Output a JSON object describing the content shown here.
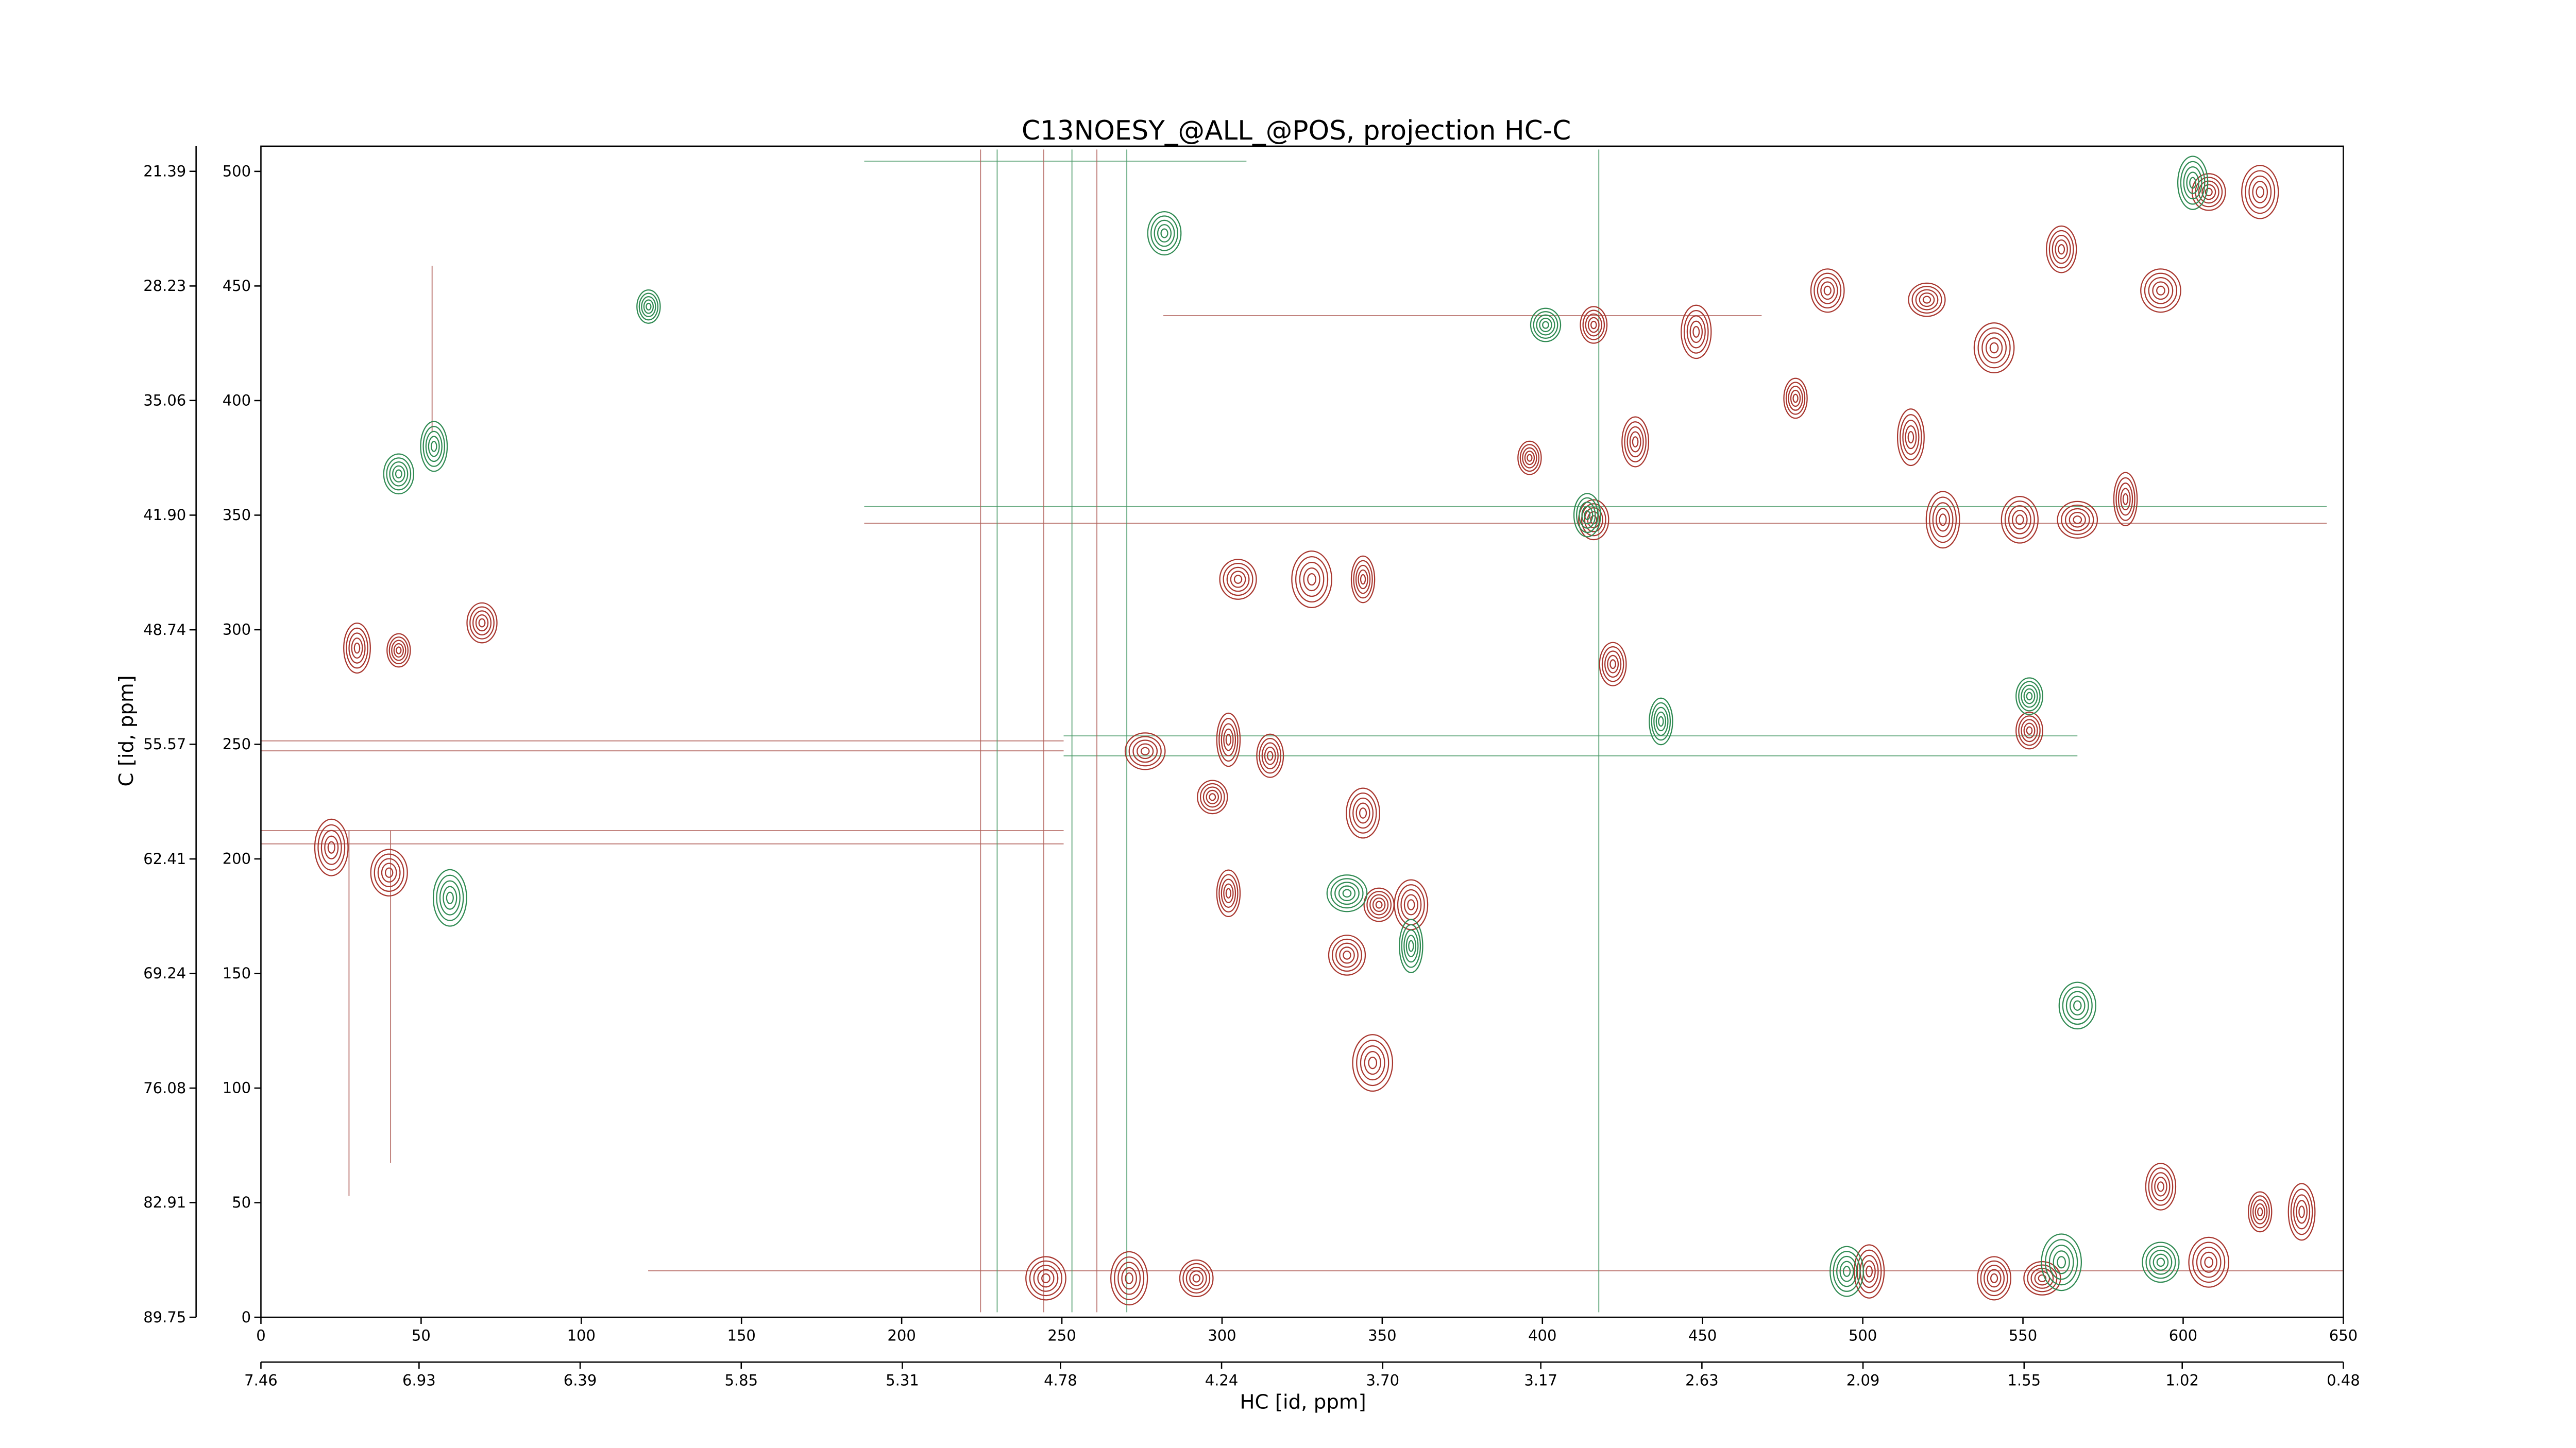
{
  "chart_data": {
    "type": "contour",
    "title": "C13NOESY_@ALL_@POS, projection HC-C",
    "xlabel": "HC [id, ppm]",
    "ylabel": "C [id, ppm]",
    "xlim": [
      0,
      650
    ],
    "xticks": [
      0,
      50,
      100,
      150,
      200,
      250,
      300,
      350,
      400,
      450,
      500,
      550,
      600,
      650
    ],
    "ylim": [
      0,
      511
    ],
    "yticks": [
      0,
      50,
      100,
      150,
      200,
      250,
      300,
      350,
      400,
      450,
      500
    ],
    "x2lim": [
      7.46,
      0.48
    ],
    "x2ticks": [
      7.46,
      6.93,
      6.39,
      5.85,
      5.31,
      4.78,
      4.24,
      {
        "value": 3.7,
        "label": "3.70"
      },
      3.17,
      2.63,
      2.09,
      1.55,
      1.02,
      0.48
    ],
    "y2lim": [
      89.75,
      19.89
    ],
    "y2ticks": [
      89.75,
      82.91,
      76.08,
      69.24,
      62.41,
      55.57,
      48.74,
      {
        "value": 41.9,
        "label": "41.90"
      },
      35.06,
      28.23,
      21.39
    ],
    "series": [
      {
        "color": "#a8362e",
        "x": [
          43,
          30,
          69,
          22,
          40,
          276,
          302,
          315,
          297,
          344,
          305,
          328,
          344,
          416,
          448,
          489,
          520,
          541,
          479,
          515,
          562,
          608,
          624,
          593,
          396,
          429,
          416,
          525,
          549,
          567,
          582,
          422,
          349,
          359,
          339,
          347,
          302,
          552,
          502,
          541,
          556,
          608,
          624,
          637,
          593,
          292,
          271,
          245
        ],
        "y": [
          291,
          292,
          303,
          205,
          194,
          247,
          252,
          245,
          227,
          220,
          322,
          322,
          322,
          433,
          430,
          448,
          444,
          423,
          401,
          384,
          466,
          491,
          491,
          448,
          375,
          382,
          348,
          348,
          348,
          348,
          357,
          285,
          180,
          180,
          158,
          111,
          185,
          256,
          20,
          17,
          17,
          24,
          46,
          46,
          57,
          17,
          17,
          17
        ]
      },
      {
        "color": "#2f8a52",
        "x": [
          121,
          54,
          43,
          59,
          567,
          339,
          359,
          414,
          401,
          495,
          593,
          562,
          437,
          552,
          603,
          282
        ],
        "y": [
          441,
          380,
          368,
          183,
          136,
          185,
          162,
          350,
          433,
          20,
          24,
          24,
          260,
          271,
          495,
          473
        ]
      }
    ]
  }
}
